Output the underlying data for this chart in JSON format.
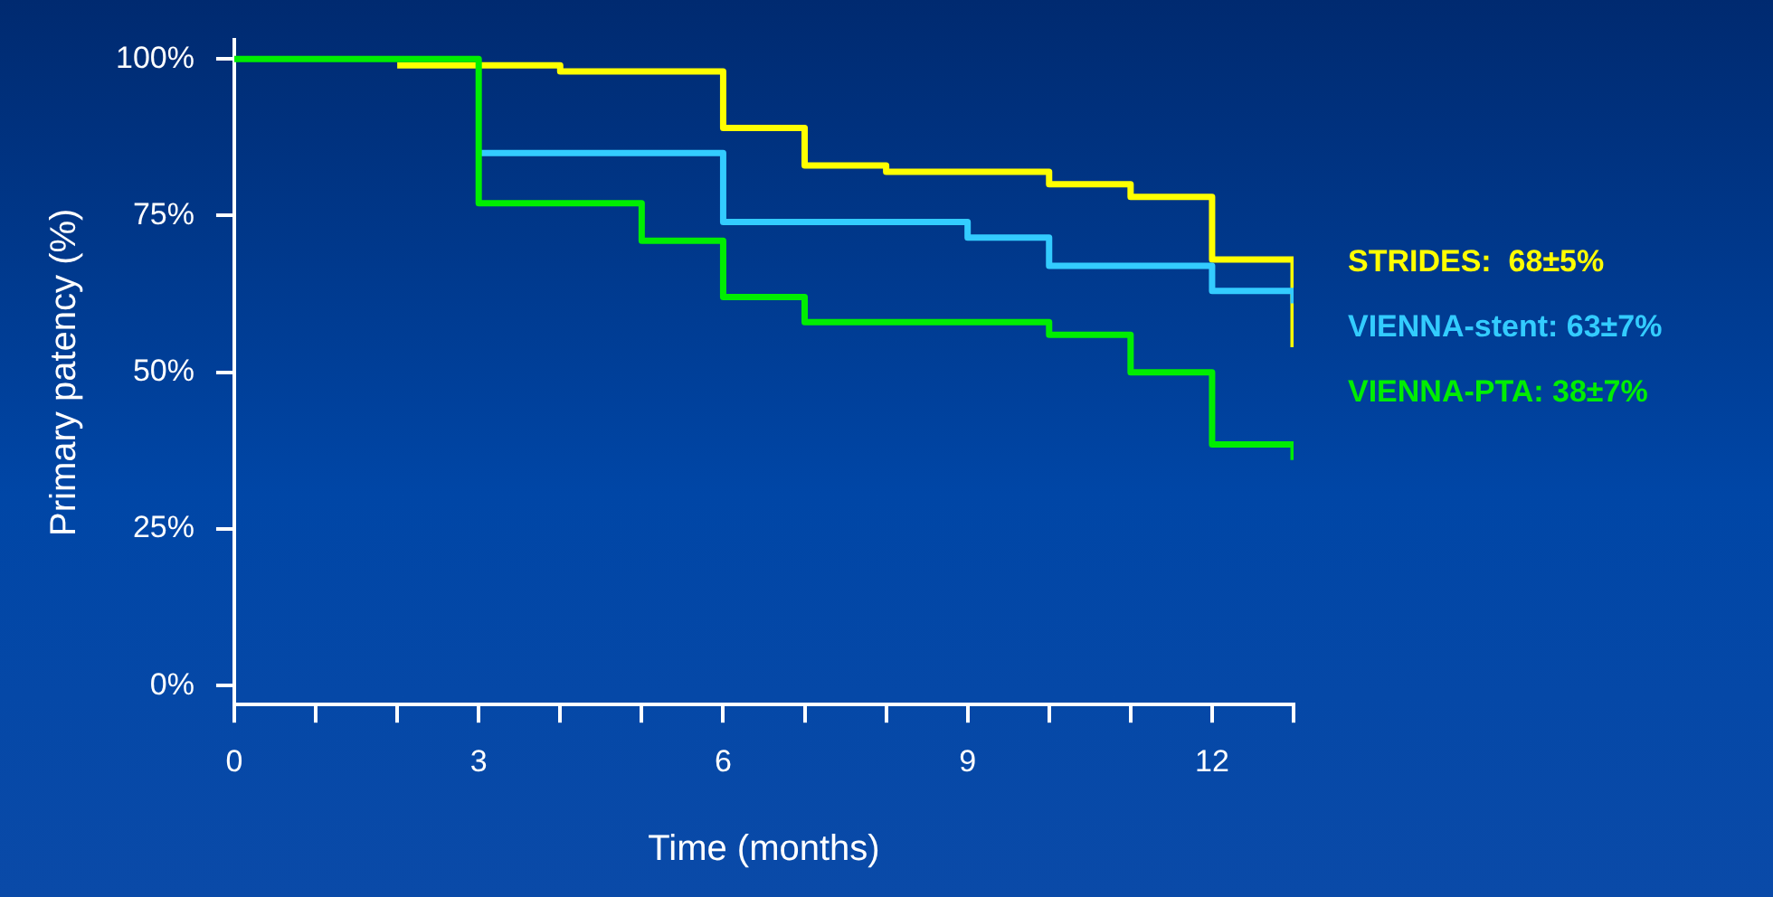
{
  "chart_data": {
    "type": "step",
    "xlabel": "Time (months)",
    "ylabel": "Primary patency (%)",
    "xlim": [
      0,
      13
    ],
    "ylim": [
      -3,
      103
    ],
    "xticks": [
      0,
      {
        "value": 1,
        "label": null
      },
      {
        "value": 2,
        "label": null
      },
      3,
      {
        "value": 4,
        "label": null
      },
      {
        "value": 5,
        "label": null
      },
      6,
      {
        "value": 7,
        "label": null
      },
      {
        "value": 8,
        "label": null
      },
      9,
      {
        "value": 10,
        "label": null
      },
      {
        "value": 11,
        "label": null
      },
      12,
      {
        "value": 13,
        "label": null
      }
    ],
    "yticks": [
      {
        "value": 0,
        "label": "0%"
      },
      {
        "value": 25,
        "label": "25%"
      },
      {
        "value": 50,
        "label": "50%"
      },
      {
        "value": 75,
        "label": "75%"
      },
      {
        "value": 100,
        "label": "100%"
      }
    ],
    "grid": false,
    "legend": "right",
    "marker": "none",
    "line_style": "solid",
    "series": [
      {
        "name": "STRIDES:  68±5%",
        "color": "#ffff00",
        "x": [
          2,
          4,
          6,
          7,
          8,
          10,
          11,
          12,
          13
        ],
        "values": [
          99,
          98,
          89,
          83,
          82,
          80,
          78,
          68,
          54
        ]
      },
      {
        "name": "VIENNA-stent: 63±7%",
        "color": "#33ccff",
        "x": [
          3,
          6,
          9,
          10,
          12,
          13
        ],
        "values": [
          85,
          74,
          71.5,
          67,
          63,
          61
        ]
      },
      {
        "name": "VIENNA-PTA: 38±7%",
        "color": "#00ee00",
        "x": [
          0,
          3,
          5,
          6,
          7,
          10,
          11,
          12,
          13
        ],
        "values": [
          100,
          77,
          71,
          62,
          58,
          56,
          50,
          38.5,
          36
        ]
      }
    ]
  }
}
